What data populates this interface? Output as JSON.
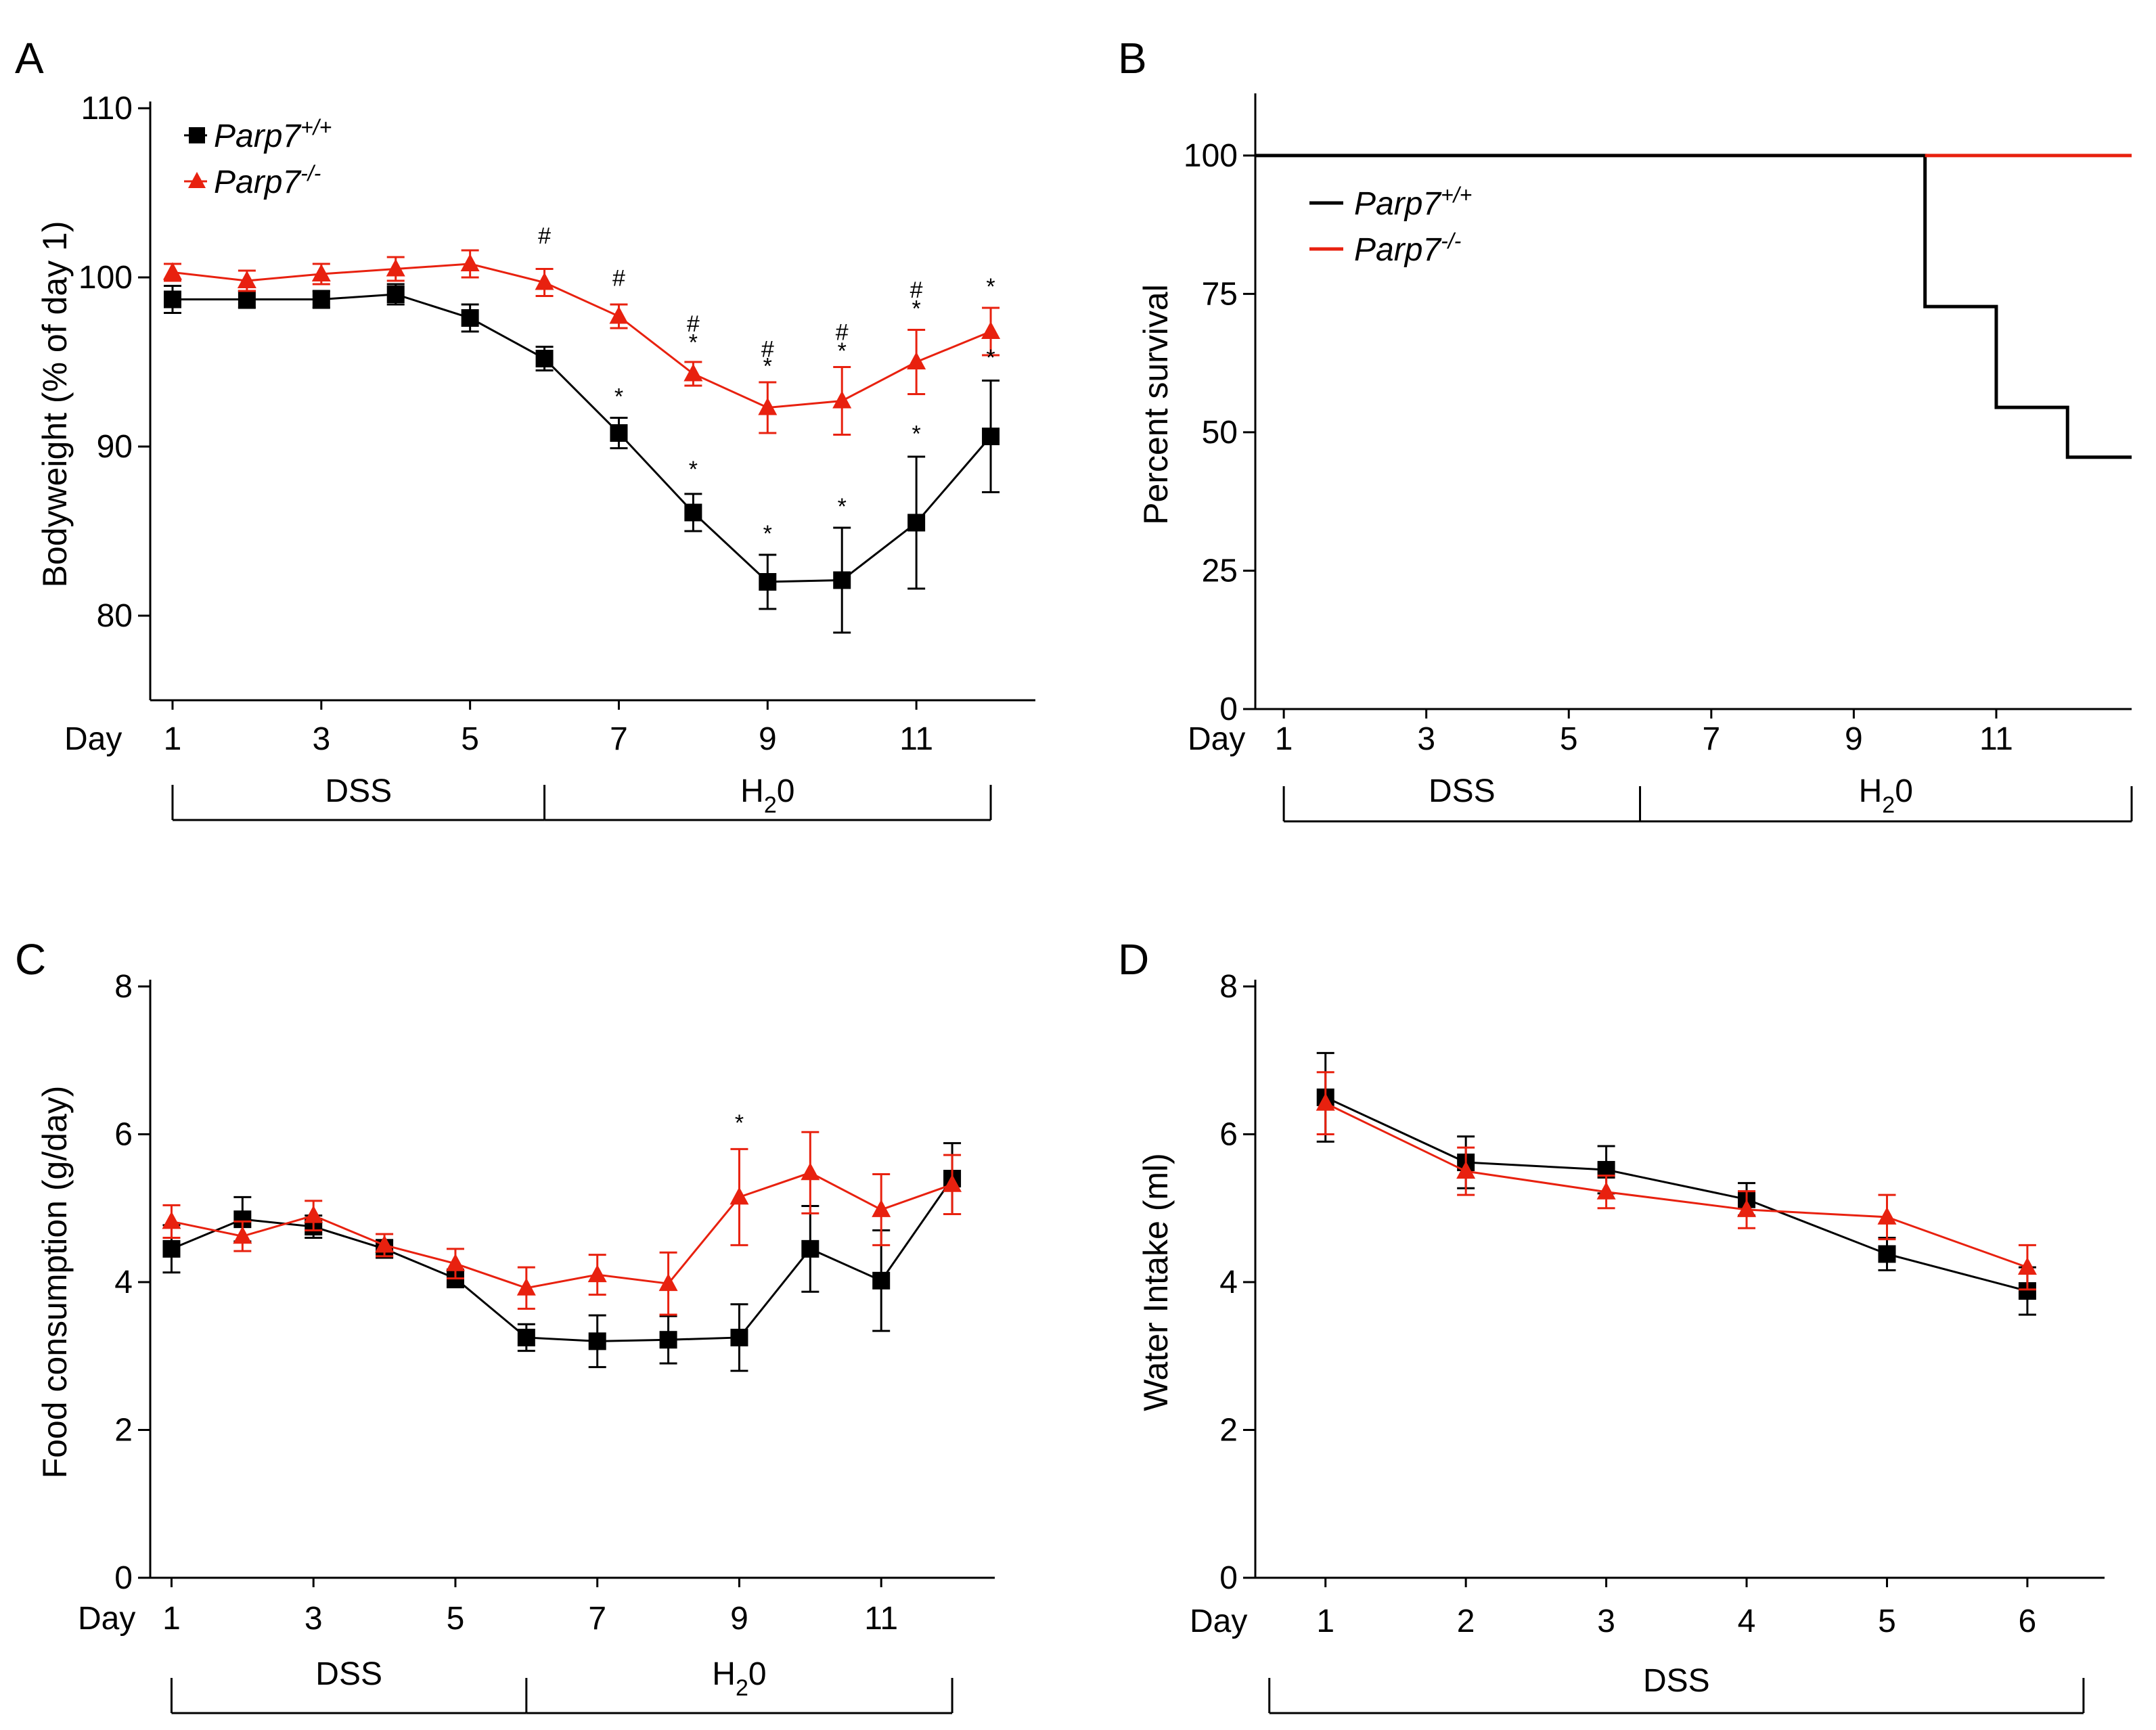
{
  "colors": {
    "wt": "#000000",
    "ko": "#e8210f"
  },
  "chart_data": [
    {
      "panel": "A",
      "type": "line",
      "ylabel": "Bodyweight (% of day 1)",
      "xlabel": "Day",
      "ylim": [
        75,
        110
      ],
      "yticks": [
        80,
        90,
        100,
        110
      ],
      "xlim": [
        0.7,
        12.6
      ],
      "xticks": [
        1,
        3,
        5,
        7,
        9,
        11
      ],
      "legend": {
        "wt_base": "Parp7",
        "wt_sup": "+/+",
        "ko_base": "Parp7",
        "ko_sup": "-/-"
      },
      "series": [
        {
          "name": "Parp7+/+",
          "color": "#000000",
          "marker": "square",
          "x": [
            1,
            2,
            3,
            4,
            5,
            6,
            7,
            8,
            9,
            10,
            11,
            12
          ],
          "values": [
            98.7,
            98.7,
            98.7,
            99.0,
            97.6,
            95.2,
            90.8,
            86.1,
            82.0,
            82.1,
            85.5,
            90.6
          ],
          "err": [
            0.8,
            0.5,
            0.5,
            0.6,
            0.8,
            0.7,
            0.9,
            1.1,
            1.6,
            3.1,
            3.9,
            3.3
          ]
        },
        {
          "name": "Parp7-/-",
          "color": "#e8210f",
          "marker": "triangle",
          "x": [
            1,
            2,
            3,
            4,
            5,
            6,
            7,
            8,
            9,
            10,
            11,
            12
          ],
          "values": [
            100.3,
            99.8,
            100.2,
            100.5,
            100.8,
            99.7,
            97.7,
            94.3,
            92.3,
            92.7,
            95.0,
            96.8
          ],
          "err": [
            0.5,
            0.6,
            0.6,
            0.7,
            0.8,
            0.8,
            0.7,
            0.7,
            1.5,
            2.0,
            1.9,
            1.4
          ]
        }
      ],
      "annotations": [
        {
          "x": 6,
          "y": 102,
          "text": "#"
        },
        {
          "x": 7,
          "y": 99.5,
          "text": "#"
        },
        {
          "x": 7,
          "y": 92.5,
          "text": "*"
        },
        {
          "x": 8,
          "y": 96.8,
          "text": "#"
        },
        {
          "x": 8,
          "y": 95.7,
          "text": "*"
        },
        {
          "x": 8,
          "y": 88.2,
          "text": "*"
        },
        {
          "x": 9,
          "y": 95.3,
          "text": "#"
        },
        {
          "x": 9,
          "y": 94.3,
          "text": "*"
        },
        {
          "x": 9,
          "y": 84.4,
          "text": "*"
        },
        {
          "x": 10,
          "y": 96.3,
          "text": "#"
        },
        {
          "x": 10,
          "y": 95.2,
          "text": "*"
        },
        {
          "x": 10,
          "y": 86.0,
          "text": "*"
        },
        {
          "x": 11,
          "y": 98.8,
          "text": "#"
        },
        {
          "x": 11,
          "y": 97.7,
          "text": "*"
        },
        {
          "x": 11,
          "y": 90.3,
          "text": "*"
        },
        {
          "x": 12,
          "y": 99.0,
          "text": "*"
        },
        {
          "x": 12,
          "y": 94.8,
          "text": "*"
        }
      ],
      "periods": [
        {
          "label": "DSS",
          "from": 1,
          "to": 6
        },
        {
          "label": "H",
          "sub": "2",
          "suffix": "0",
          "from": 6,
          "to": 12
        }
      ]
    },
    {
      "panel": "B",
      "type": "line",
      "ylabel": "Percent survival",
      "xlabel": "Day",
      "ylim": [
        0,
        110
      ],
      "yticks": [
        0,
        25,
        50,
        75,
        100
      ],
      "xlim": [
        0.6,
        12.9
      ],
      "xticks": [
        1,
        3,
        5,
        7,
        9,
        11
      ],
      "legend": {
        "wt_base": "Parp7",
        "wt_sup": "+/+",
        "ko_base": "Parp7",
        "ko_sup": "-/-"
      },
      "series": [
        {
          "name": "Parp7+/+",
          "color": "#000000",
          "step": true,
          "x": [
            0.6,
            10,
            10,
            11,
            11,
            12,
            12,
            12.9
          ],
          "values": [
            100,
            100,
            72.7,
            72.7,
            54.5,
            54.5,
            45.5,
            45.5
          ]
        },
        {
          "name": "Parp7-/-",
          "color": "#e8210f",
          "step": true,
          "x": [
            10,
            12.9
          ],
          "values": [
            100,
            100
          ]
        }
      ],
      "periods": [
        {
          "label": "DSS",
          "from": 1,
          "to": 6
        },
        {
          "label": "H",
          "sub": "2",
          "suffix": "0",
          "from": 6,
          "to": 12.9
        }
      ]
    },
    {
      "panel": "C",
      "type": "line",
      "ylabel": "Food consumption (g/day)",
      "xlabel": "Day",
      "ylim": [
        0,
        8
      ],
      "yticks": [
        0,
        2,
        4,
        6,
        8
      ],
      "xlim": [
        0.7,
        12.6
      ],
      "xticks": [
        1,
        3,
        5,
        7,
        9,
        11
      ],
      "series": [
        {
          "name": "Parp7+/+",
          "color": "#000000",
          "marker": "square",
          "x": [
            1,
            2,
            3,
            4,
            5,
            6,
            7,
            8,
            9,
            10,
            11,
            12
          ],
          "values": [
            4.45,
            4.85,
            4.75,
            4.45,
            4.05,
            3.25,
            3.2,
            3.22,
            3.25,
            4.45,
            4.02,
            5.4
          ],
          "err": [
            0.32,
            0.3,
            0.15,
            0.12,
            0.12,
            0.18,
            0.35,
            0.32,
            0.45,
            0.58,
            0.68,
            0.48
          ]
        },
        {
          "name": "Parp7-/-",
          "color": "#e8210f",
          "marker": "triangle",
          "x": [
            1,
            2,
            3,
            4,
            5,
            6,
            7,
            8,
            9,
            10,
            11,
            12
          ],
          "values": [
            4.82,
            4.62,
            4.9,
            4.5,
            4.25,
            3.92,
            4.1,
            3.98,
            5.15,
            5.48,
            4.98,
            5.32
          ],
          "err": [
            0.22,
            0.2,
            0.2,
            0.15,
            0.2,
            0.28,
            0.27,
            0.42,
            0.65,
            0.55,
            0.48,
            0.4
          ]
        }
      ],
      "annotations": [
        {
          "x": 9,
          "y": 6.05,
          "text": "*"
        }
      ],
      "periods": [
        {
          "label": "DSS",
          "from": 1,
          "to": 6
        },
        {
          "label": "H",
          "sub": "2",
          "suffix": "0",
          "from": 6,
          "to": 12
        }
      ]
    },
    {
      "panel": "D",
      "type": "line",
      "ylabel": "Water Intake (ml)",
      "xlabel": "Day",
      "ylim": [
        0,
        8
      ],
      "yticks": [
        0,
        2,
        4,
        6,
        8
      ],
      "xlim": [
        0.5,
        6.55
      ],
      "xticks": [
        1,
        2,
        3,
        4,
        5,
        6
      ],
      "series": [
        {
          "name": "Parp7+/+",
          "color": "#000000",
          "marker": "square",
          "x": [
            1,
            2,
            3,
            4,
            5,
            6
          ],
          "values": [
            6.5,
            5.62,
            5.52,
            5.12,
            4.38,
            3.88
          ],
          "err": [
            0.6,
            0.35,
            0.32,
            0.22,
            0.22,
            0.32
          ]
        },
        {
          "name": "Parp7-/-",
          "color": "#e8210f",
          "marker": "triangle",
          "x": [
            1,
            2,
            3,
            4,
            5,
            6
          ],
          "values": [
            6.42,
            5.5,
            5.22,
            4.98,
            4.88,
            4.2
          ],
          "err": [
            0.42,
            0.32,
            0.22,
            0.25,
            0.3,
            0.3
          ]
        }
      ],
      "periods": [
        {
          "label": "DSS",
          "from": 0.6,
          "to": 6.4
        }
      ]
    }
  ]
}
